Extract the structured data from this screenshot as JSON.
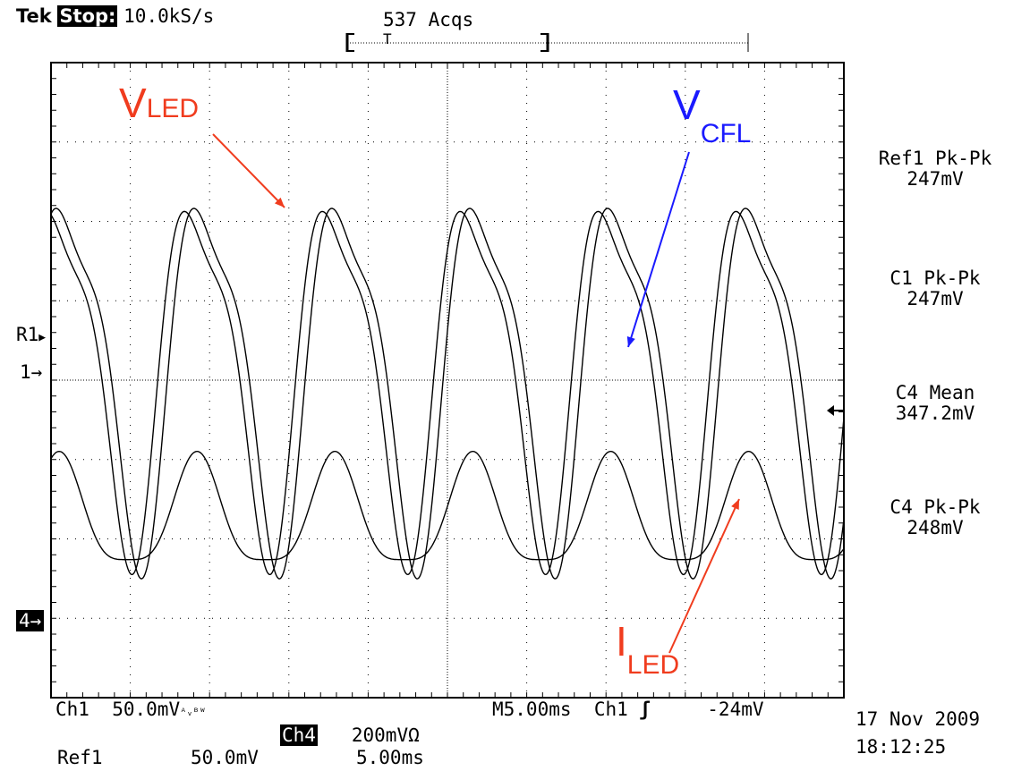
{
  "header": {
    "brand": "Tek",
    "state": "Stop:",
    "sample_rate": "10.0kS/s",
    "acqs": "537 Acqs",
    "trigger_marker": "T"
  },
  "markers": {
    "r1": "R1",
    "ch1": "1",
    "ch4": "4"
  },
  "annotations": {
    "vled": {
      "main": "V",
      "sub": "LED",
      "color": "#f03c1e"
    },
    "vcfl": {
      "main": "V",
      "sub": "CFL",
      "color": "#1a1aff"
    },
    "iled": {
      "main": "I",
      "sub": "LED",
      "color": "#f03c1e"
    }
  },
  "measurements": [
    {
      "name": "Ref1 Pk-Pk",
      "value": "247mV"
    },
    {
      "name": "C1 Pk-Pk",
      "value": "247mV"
    },
    {
      "name": "C4 Mean",
      "value": "347.2mV"
    },
    {
      "name": "C4 Pk-Pk",
      "value": "248mV"
    }
  ],
  "footer": {
    "ch1_label": "Ch1",
    "ch1_scale": "50.0mV",
    "ch1_bw": "ᴬᵥᴮᵂ",
    "timebase": "M5.00ms",
    "trig_source": "Ch1",
    "trig_slope": "ʃ",
    "trig_level": "-24mV",
    "ch4_label": "Ch4",
    "ch4_scale": "200mVΩ",
    "ref1_label": "Ref1",
    "ref1_scale": "50.0mV",
    "ref1_time": "5.00ms",
    "date": "17 Nov 2009",
    "time": "18:12:25"
  },
  "chart_data": {
    "type": "line",
    "grid": true,
    "x_divisions": 10,
    "y_divisions": 8,
    "xlim": [
      0,
      10
    ],
    "ylim": [
      -4,
      4
    ],
    "series": [
      {
        "name": "V_LED",
        "color": "#000000",
        "frequency_cycles": 5.75,
        "phase_div": 0.0,
        "amplitude_div": 2.5,
        "offset_div": 0.2,
        "shape": "skewed"
      },
      {
        "name": "V_CFL",
        "color": "#000000",
        "frequency_cycles": 5.75,
        "phase_div": 0.12,
        "amplitude_div": 2.55,
        "offset_div": 0.2,
        "shape": "skewed"
      },
      {
        "name": "I_LED",
        "color": "#000000",
        "frequency_cycles": 5.75,
        "phase_div": 0.0,
        "amplitude_div": 0.75,
        "offset_div": -1.75,
        "shape": "rounded"
      }
    ]
  }
}
